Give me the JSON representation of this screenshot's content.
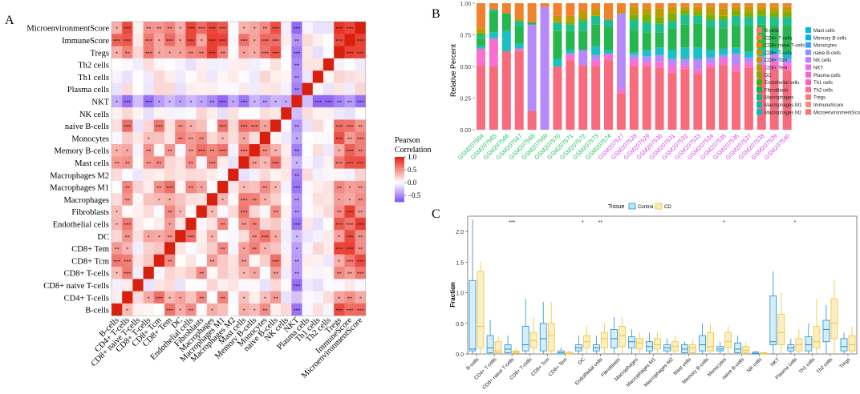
{
  "panels": {
    "A": "A",
    "B": "B",
    "C": "C"
  },
  "panelA": {
    "labels": [
      "MicroenvironmentScore",
      "ImmuneScore",
      "Tregs",
      "Th2 cells",
      "Th1 cells",
      "Plasma cells",
      "NKT",
      "NK cells",
      "naive B-cells",
      "Monocytes",
      "Memory B-cells",
      "Mast cells",
      "Macrophages M2",
      "Macrophages M1",
      "Macrophages",
      "Fibroblasts",
      "Endothelial cells",
      "DC",
      "CD8+ Tem",
      "CD8+ Tcm",
      "CD8+ T-cells",
      "CD8+ naive T-cells",
      "CD4+ T-cells",
      "B-cells"
    ],
    "legend_title_line1": "Pearson",
    "legend_title_line2": "Correlation",
    "legend_ticks": [
      "1.0",
      "0.5",
      "0.0",
      "−0.5"
    ],
    "legend_values": [
      1.0,
      0.5,
      0.0,
      -0.5
    ],
    "colors": {
      "positive": "#e8291c",
      "negative": "#8a5cf5",
      "neutral": "#ffffff",
      "diagonal": "#d9200f"
    }
  },
  "panelB": {
    "ylabel": "Relative Percent",
    "yticks": [
      "1.00",
      "0.75",
      "0.50",
      "0.25",
      "0.00"
    ],
    "ytick_values": [
      1.0,
      0.75,
      0.5,
      0.25,
      0.0
    ],
    "samples": [
      "GSM207564",
      "GSM207565",
      "GSM207566",
      "GSM207567",
      "GSM207568",
      "GSM207569",
      "GSM207570",
      "GSM207571",
      "GSM207572",
      "GSM207573",
      "GSM207574",
      "GSM207527",
      "GSM207528",
      "GSM207529",
      "GSM207530",
      "GSM207531",
      "GSM207532",
      "GSM207533",
      "GSM207534",
      "GSM207535",
      "GSM207536",
      "GSM207537",
      "GSM207538",
      "GSM207539",
      "GSM207540"
    ],
    "sample_colors": [
      "#22c55e",
      "#22c55e",
      "#22c55e",
      "#22c55e",
      "#22c55e",
      "#22c55e",
      "#22c55e",
      "#22c55e",
      "#22c55e",
      "#22c55e",
      "#22c55e",
      "#d946ef",
      "#d946ef",
      "#d946ef",
      "#d946ef",
      "#d946ef",
      "#d946ef",
      "#d946ef",
      "#d946ef",
      "#d946ef",
      "#d946ef",
      "#d946ef",
      "#d946ef",
      "#d946ef",
      "#d946ef"
    ],
    "legend_col1": [
      "B-cells",
      "CD4+ T-cells",
      "CD8+ naive T-cells",
      "CD8+ T-cells",
      "CD8+ Tcm",
      "CD8+ Tem",
      "DC",
      "Endothelial cells",
      "Fibroblasts",
      "Macrophages",
      "Macrophages M1",
      "Macrophages M2"
    ],
    "legend_col2": [
      "Mast cells",
      "Memory B-cells",
      "Monocytes",
      "naive B-cells",
      "NK cells",
      "NKT",
      "Plasma cells",
      "Th1 cells",
      "Th2 cells",
      "Tregs",
      "ImmuneScore",
      "MicroenvironmentScore"
    ],
    "legend_colors1": [
      "#f8766d",
      "#f17e3d",
      "#e58700",
      "#d49200",
      "#c09b00",
      "#a3a500",
      "#7cae00",
      "#39b600",
      "#00bb4e",
      "#00bf7d",
      "#00c1a3",
      "#00bfc4"
    ],
    "legend_colors2": [
      "#00bae0",
      "#00b0f6",
      "#35a2ff",
      "#9590ff",
      "#c77cff",
      "#e76bf3",
      "#fa62db",
      "#ff62bc",
      "#ff6c91",
      "#ff7a6a",
      "#ff8a80",
      "#f8766d"
    ],
    "segment_order": [
      "MicroenvironmentScore",
      "Plasma cells",
      "Th1 cells",
      "NKT",
      "Macrophages M2",
      "Fibroblasts",
      "Macrophages",
      "DC",
      "CD8+ Tcm",
      "B-cells",
      "CD4+ T-cells"
    ],
    "segment_colors": [
      "#f76b7c",
      "#fb6fd1",
      "#f570e0",
      "#b68afb",
      "#19c1c4",
      "#26b64e",
      "#1dbf8a",
      "#7cae00",
      "#c09b00",
      "#f8766d",
      "#f2812c"
    ],
    "stacks": [
      [
        0.51,
        0.13,
        0.0,
        0.0,
        0.02,
        0.06,
        0.03,
        0.02,
        0.03,
        0.0,
        0.2
      ],
      [
        0.5,
        0.22,
        0.0,
        0.0,
        0.05,
        0.16,
        0.02,
        0.0,
        0.0,
        0.0,
        0.05
      ],
      [
        0.62,
        0.0,
        0.0,
        0.0,
        0.16,
        0.14,
        0.0,
        0.0,
        0.0,
        0.0,
        0.08
      ],
      [
        0.62,
        0.02,
        0.0,
        0.0,
        0.04,
        0.13,
        0.05,
        0.0,
        0.02,
        0.0,
        0.12
      ],
      [
        0.15,
        0.0,
        0.0,
        0.68,
        0.0,
        0.02,
        0.0,
        0.0,
        0.0,
        0.0,
        0.15
      ],
      [
        0.0,
        0.0,
        0.0,
        0.97,
        0.0,
        0.0,
        0.0,
        0.0,
        0.0,
        0.0,
        0.03
      ],
      [
        0.5,
        0.0,
        0.0,
        0.0,
        0.06,
        0.22,
        0.07,
        0.0,
        0.05,
        0.0,
        0.1
      ],
      [
        0.55,
        0.05,
        0.0,
        0.0,
        0.03,
        0.15,
        0.05,
        0.02,
        0.05,
        0.0,
        0.1
      ],
      [
        0.51,
        0.0,
        0.0,
        0.12,
        0.0,
        0.15,
        0.08,
        0.02,
        0.06,
        0.0,
        0.06
      ],
      [
        0.5,
        0.05,
        0.0,
        0.04,
        0.07,
        0.17,
        0.07,
        0.0,
        0.05,
        0.0,
        0.05
      ],
      [
        0.55,
        0.05,
        0.0,
        0.0,
        0.03,
        0.18,
        0.06,
        0.0,
        0.0,
        0.0,
        0.13
      ],
      [
        0.29,
        0.03,
        0.0,
        0.6,
        0.0,
        0.0,
        0.0,
        0.0,
        0.02,
        0.0,
        0.06
      ],
      [
        0.5,
        0.05,
        0.0,
        0.04,
        0.02,
        0.18,
        0.08,
        0.04,
        0.06,
        0.0,
        0.03
      ],
      [
        0.5,
        0.03,
        0.0,
        0.05,
        0.05,
        0.14,
        0.08,
        0.06,
        0.05,
        0.0,
        0.04
      ],
      [
        0.49,
        0.05,
        0.0,
        0.05,
        0.06,
        0.12,
        0.07,
        0.05,
        0.07,
        0.0,
        0.04
      ],
      [
        0.45,
        0.06,
        0.0,
        0.05,
        0.07,
        0.17,
        0.06,
        0.06,
        0.05,
        0.0,
        0.03
      ],
      [
        0.48,
        0.03,
        0.0,
        0.05,
        0.09,
        0.18,
        0.08,
        0.03,
        0.03,
        0.0,
        0.03
      ],
      [
        0.44,
        0.04,
        0.0,
        0.08,
        0.09,
        0.19,
        0.06,
        0.03,
        0.04,
        0.0,
        0.03
      ],
      [
        0.49,
        0.03,
        0.0,
        0.05,
        0.06,
        0.18,
        0.06,
        0.04,
        0.06,
        0.0,
        0.03
      ],
      [
        0.51,
        0.05,
        0.0,
        0.03,
        0.05,
        0.16,
        0.07,
        0.03,
        0.06,
        0.0,
        0.04
      ],
      [
        0.46,
        0.05,
        0.0,
        0.09,
        0.05,
        0.17,
        0.08,
        0.04,
        0.03,
        0.0,
        0.03
      ],
      [
        0.49,
        0.04,
        0.0,
        0.04,
        0.05,
        0.2,
        0.07,
        0.04,
        0.04,
        0.0,
        0.03
      ],
      [
        0.48,
        0.04,
        0.0,
        0.06,
        0.06,
        0.19,
        0.07,
        0.04,
        0.03,
        0.0,
        0.03
      ],
      [
        0.48,
        0.06,
        0.0,
        0.06,
        0.04,
        0.18,
        0.07,
        0.04,
        0.04,
        0.0,
        0.03
      ],
      [
        0.47,
        0.05,
        0.0,
        0.04,
        0.06,
        0.2,
        0.07,
        0.04,
        0.04,
        0.0,
        0.03
      ]
    ]
  },
  "panelC": {
    "legend_title": "Tissue",
    "legend_control": "Control",
    "legend_cd": "CD",
    "color_control": "#1d8fcf",
    "color_cd": "#f2c230",
    "ylabel": "Fraction",
    "yticks": [
      "2.0",
      "1.5",
      "1.0",
      "0.5",
      "0.0"
    ],
    "ytick_values": [
      2.0,
      1.5,
      1.0,
      0.5,
      0.0
    ],
    "ylim": [
      0,
      2.25
    ],
    "categories": [
      "B-cells",
      "CD4+ T-cells",
      "CD8+ naive T-cells",
      "CD8+ T-cells",
      "CD8+ Tcm",
      "CD8+ Tem",
      "DC",
      "Endothelial cells",
      "Fibroblasts",
      "Macrophages",
      "Macrophages M1",
      "Macrophages M2",
      "Mast cells",
      "Memory B-cells",
      "Monocytes",
      "naive B-cells",
      "NK cells",
      "NKT",
      "Plasma cells",
      "Th1 cells",
      "Th2 cells",
      "Tregs"
    ],
    "significance": [
      "",
      "",
      "***",
      "",
      "",
      "",
      "*",
      "**",
      "",
      "",
      "",
      "",
      "",
      "",
      "*",
      "",
      "",
      "",
      "*",
      "",
      "",
      ""
    ],
    "control_boxes": [
      [
        0.0,
        0.05,
        0.08,
        1.2,
        2.2
      ],
      [
        0.0,
        0.02,
        0.1,
        0.3,
        0.55
      ],
      [
        0.0,
        0.02,
        0.08,
        0.15,
        0.3
      ],
      [
        0.0,
        0.05,
        0.15,
        0.45,
        0.9
      ],
      [
        0.0,
        0.05,
        0.25,
        0.5,
        0.85
      ],
      [
        0.0,
        0.0,
        0.02,
        0.05,
        0.1
      ],
      [
        0.0,
        0.05,
        0.1,
        0.15,
        0.3
      ],
      [
        0.0,
        0.05,
        0.1,
        0.15,
        0.3
      ],
      [
        0.0,
        0.1,
        0.25,
        0.4,
        0.6
      ],
      [
        0.0,
        0.1,
        0.2,
        0.28,
        0.4
      ],
      [
        0.0,
        0.05,
        0.12,
        0.2,
        0.35
      ],
      [
        0.0,
        0.05,
        0.1,
        0.15,
        0.25
      ],
      [
        0.0,
        0.02,
        0.08,
        0.15,
        0.2
      ],
      [
        0.0,
        0.05,
        0.15,
        0.3,
        0.5
      ],
      [
        0.0,
        0.05,
        0.08,
        0.12,
        0.2
      ],
      [
        0.0,
        0.02,
        0.08,
        0.18,
        0.3
      ],
      [
        0.0,
        0.0,
        0.01,
        0.03,
        0.05
      ],
      [
        0.0,
        0.15,
        0.2,
        0.95,
        1.35
      ],
      [
        0.0,
        0.05,
        0.1,
        0.15,
        0.25
      ],
      [
        0.0,
        0.05,
        0.15,
        0.28,
        0.5
      ],
      [
        0.0,
        0.2,
        0.4,
        0.55,
        0.8
      ],
      [
        0.0,
        0.05,
        0.12,
        0.25,
        0.35
      ]
    ],
    "cd_boxes": [
      [
        0.0,
        0.1,
        0.45,
        1.35,
        1.5
      ],
      [
        0.0,
        0.02,
        0.05,
        0.2,
        0.3
      ],
      [
        0.0,
        0.01,
        0.03,
        0.05,
        0.1
      ],
      [
        0.0,
        0.1,
        0.22,
        0.35,
        0.6
      ],
      [
        0.0,
        0.05,
        0.3,
        0.5,
        0.85
      ],
      [
        0.0,
        0.0,
        0.01,
        0.03,
        0.05
      ],
      [
        0.0,
        0.1,
        0.2,
        0.3,
        0.45
      ],
      [
        0.0,
        0.1,
        0.25,
        0.35,
        0.5
      ],
      [
        0.0,
        0.12,
        0.3,
        0.45,
        0.6
      ],
      [
        0.0,
        0.08,
        0.18,
        0.25,
        0.35
      ],
      [
        0.0,
        0.08,
        0.15,
        0.25,
        0.35
      ],
      [
        0.0,
        0.05,
        0.12,
        0.2,
        0.3
      ],
      [
        0.0,
        0.02,
        0.1,
        0.15,
        0.22
      ],
      [
        0.0,
        0.05,
        0.12,
        0.35,
        0.5
      ],
      [
        0.0,
        0.1,
        0.2,
        0.35,
        0.45
      ],
      [
        0.0,
        0.02,
        0.06,
        0.12,
        0.2
      ],
      [
        0.0,
        0.0,
        0.01,
        0.02,
        0.04
      ],
      [
        0.0,
        0.15,
        0.35,
        0.65,
        1.0
      ],
      [
        0.0,
        0.05,
        0.15,
        0.25,
        0.4
      ],
      [
        0.0,
        0.1,
        0.2,
        0.45,
        0.9
      ],
      [
        0.0,
        0.25,
        0.5,
        0.9,
        1.2
      ],
      [
        0.0,
        0.05,
        0.15,
        0.3,
        0.45
      ]
    ]
  }
}
